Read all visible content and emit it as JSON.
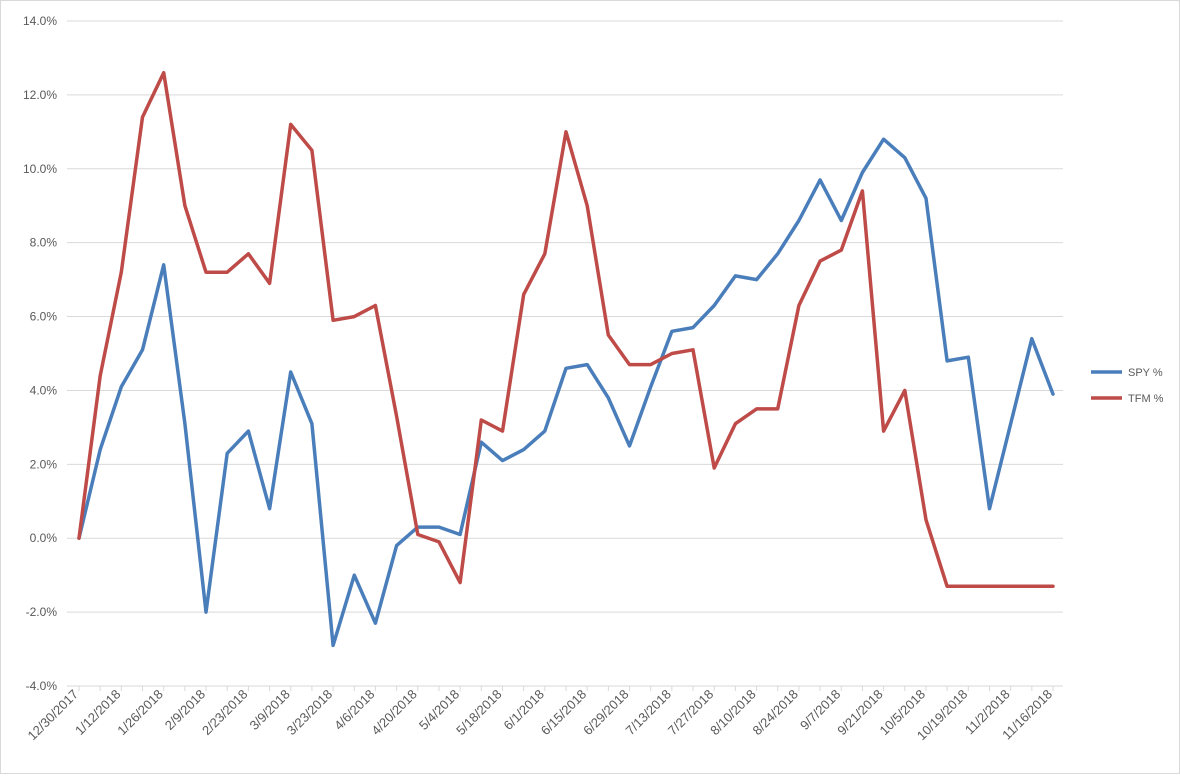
{
  "chart_data": {
    "type": "line",
    "title": "",
    "xlabel": "",
    "ylabel": "",
    "ylim": [
      -0.04,
      0.14
    ],
    "y_ticks": [
      -0.04,
      -0.02,
      0.0,
      0.02,
      0.04,
      0.06,
      0.08,
      0.1,
      0.12,
      0.14
    ],
    "y_tick_labels": [
      "-4.0%",
      "-2.0%",
      "0.0%",
      "2.0%",
      "4.0%",
      "6.0%",
      "8.0%",
      "10.0%",
      "12.0%",
      "14.0%"
    ],
    "y_format": "percent",
    "grid": "horizontal",
    "legend_position": "right",
    "x": [
      "12/30/2017",
      "1/5/2018",
      "1/12/2018",
      "1/19/2018",
      "1/26/2018",
      "2/2/2018",
      "2/9/2018",
      "2/16/2018",
      "2/23/2018",
      "3/2/2018",
      "3/9/2018",
      "3/16/2018",
      "3/23/2018",
      "3/30/2018",
      "4/6/2018",
      "4/13/2018",
      "4/20/2018",
      "4/27/2018",
      "5/4/2018",
      "5/11/2018",
      "5/18/2018",
      "5/25/2018",
      "6/1/2018",
      "6/8/2018",
      "6/15/2018",
      "6/22/2018",
      "6/29/2018",
      "7/6/2018",
      "7/13/2018",
      "7/20/2018",
      "7/27/2018",
      "8/3/2018",
      "8/10/2018",
      "8/17/2018",
      "8/24/2018",
      "8/31/2018",
      "9/7/2018",
      "9/14/2018",
      "9/21/2018",
      "9/28/2018",
      "10/5/2018",
      "10/12/2018",
      "10/19/2018",
      "10/26/2018",
      "11/2/2018",
      "11/9/2018",
      "11/16/2018"
    ],
    "x_tick_labels": [
      "12/30/2017",
      "1/12/2018",
      "1/26/2018",
      "2/9/2018",
      "2/23/2018",
      "3/9/2018",
      "3/23/2018",
      "4/6/2018",
      "4/20/2018",
      "5/4/2018",
      "5/18/2018",
      "6/1/2018",
      "6/15/2018",
      "6/29/2018",
      "7/13/2018",
      "7/27/2018",
      "8/10/2018",
      "8/24/2018",
      "9/7/2018",
      "9/21/2018",
      "10/5/2018",
      "10/19/2018",
      "11/2/2018",
      "11/16/2018"
    ],
    "series": [
      {
        "name": "SPY %",
        "color": "#4a7ebb",
        "values": [
          0.0,
          0.024,
          0.041,
          0.051,
          0.074,
          0.031,
          -0.02,
          0.023,
          0.029,
          0.008,
          0.045,
          0.031,
          -0.029,
          -0.01,
          -0.023,
          -0.002,
          0.003,
          0.003,
          0.001,
          0.026,
          0.021,
          0.024,
          0.029,
          0.046,
          0.047,
          0.038,
          0.025,
          0.041,
          0.056,
          0.057,
          0.063,
          0.071,
          0.07,
          0.077,
          0.086,
          0.097,
          0.086,
          0.099,
          0.108,
          0.103,
          0.092,
          0.048,
          0.049,
          0.008,
          0.031,
          0.054,
          0.039
        ]
      },
      {
        "name": "TFM %",
        "color": "#be4b48",
        "values": [
          0.0,
          0.044,
          0.072,
          0.114,
          0.126,
          0.09,
          0.072,
          0.072,
          0.077,
          0.069,
          0.112,
          0.105,
          0.059,
          0.06,
          0.063,
          0.033,
          0.001,
          -0.001,
          -0.012,
          0.032,
          0.029,
          0.066,
          0.077,
          0.11,
          0.09,
          0.055,
          0.047,
          0.047,
          0.05,
          0.051,
          0.019,
          0.031,
          0.035,
          0.035,
          0.063,
          0.075,
          0.078,
          0.094,
          0.029,
          0.04,
          0.005,
          -0.013,
          -0.013,
          -0.013,
          -0.013,
          -0.013,
          -0.013
        ]
      }
    ]
  }
}
